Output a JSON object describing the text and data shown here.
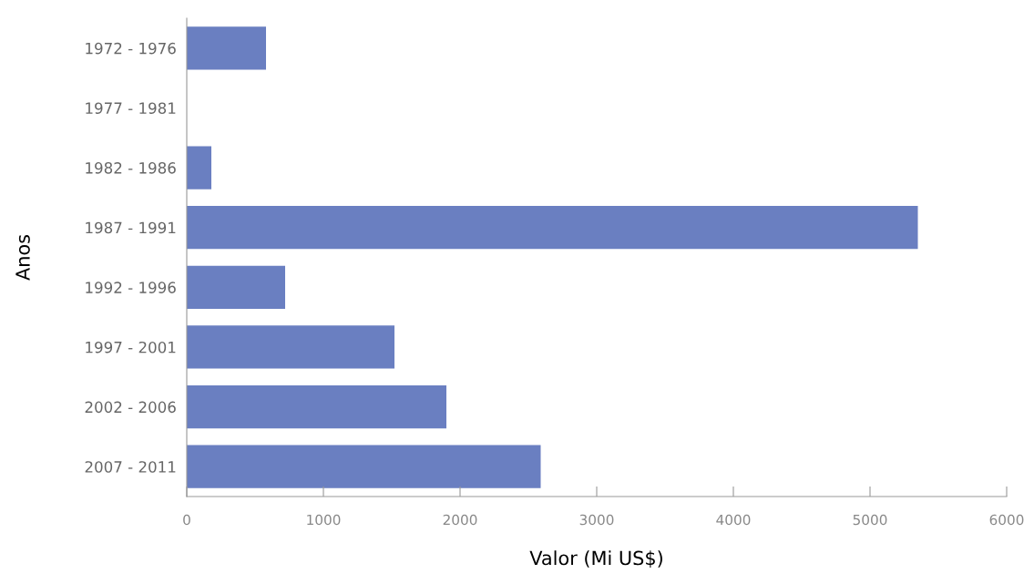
{
  "chart_data": {
    "type": "bar",
    "orientation": "horizontal",
    "xlabel": "Valor (Mi US$)",
    "ylabel": "Anos",
    "categories": [
      "1972 - 1976",
      "1977 - 1981",
      "1982 - 1986",
      "1987 - 1991",
      "1992 - 1996",
      "1997 - 2001",
      "2002 - 2006",
      "2007 - 2011"
    ],
    "values": [
      580,
      0,
      180,
      5350,
      720,
      1520,
      1900,
      2590
    ],
    "color": "#6a7fc1",
    "xlim": [
      0,
      6000
    ],
    "xticks": [
      0,
      1000,
      2000,
      3000,
      4000,
      5000,
      6000
    ],
    "grid": false
  }
}
